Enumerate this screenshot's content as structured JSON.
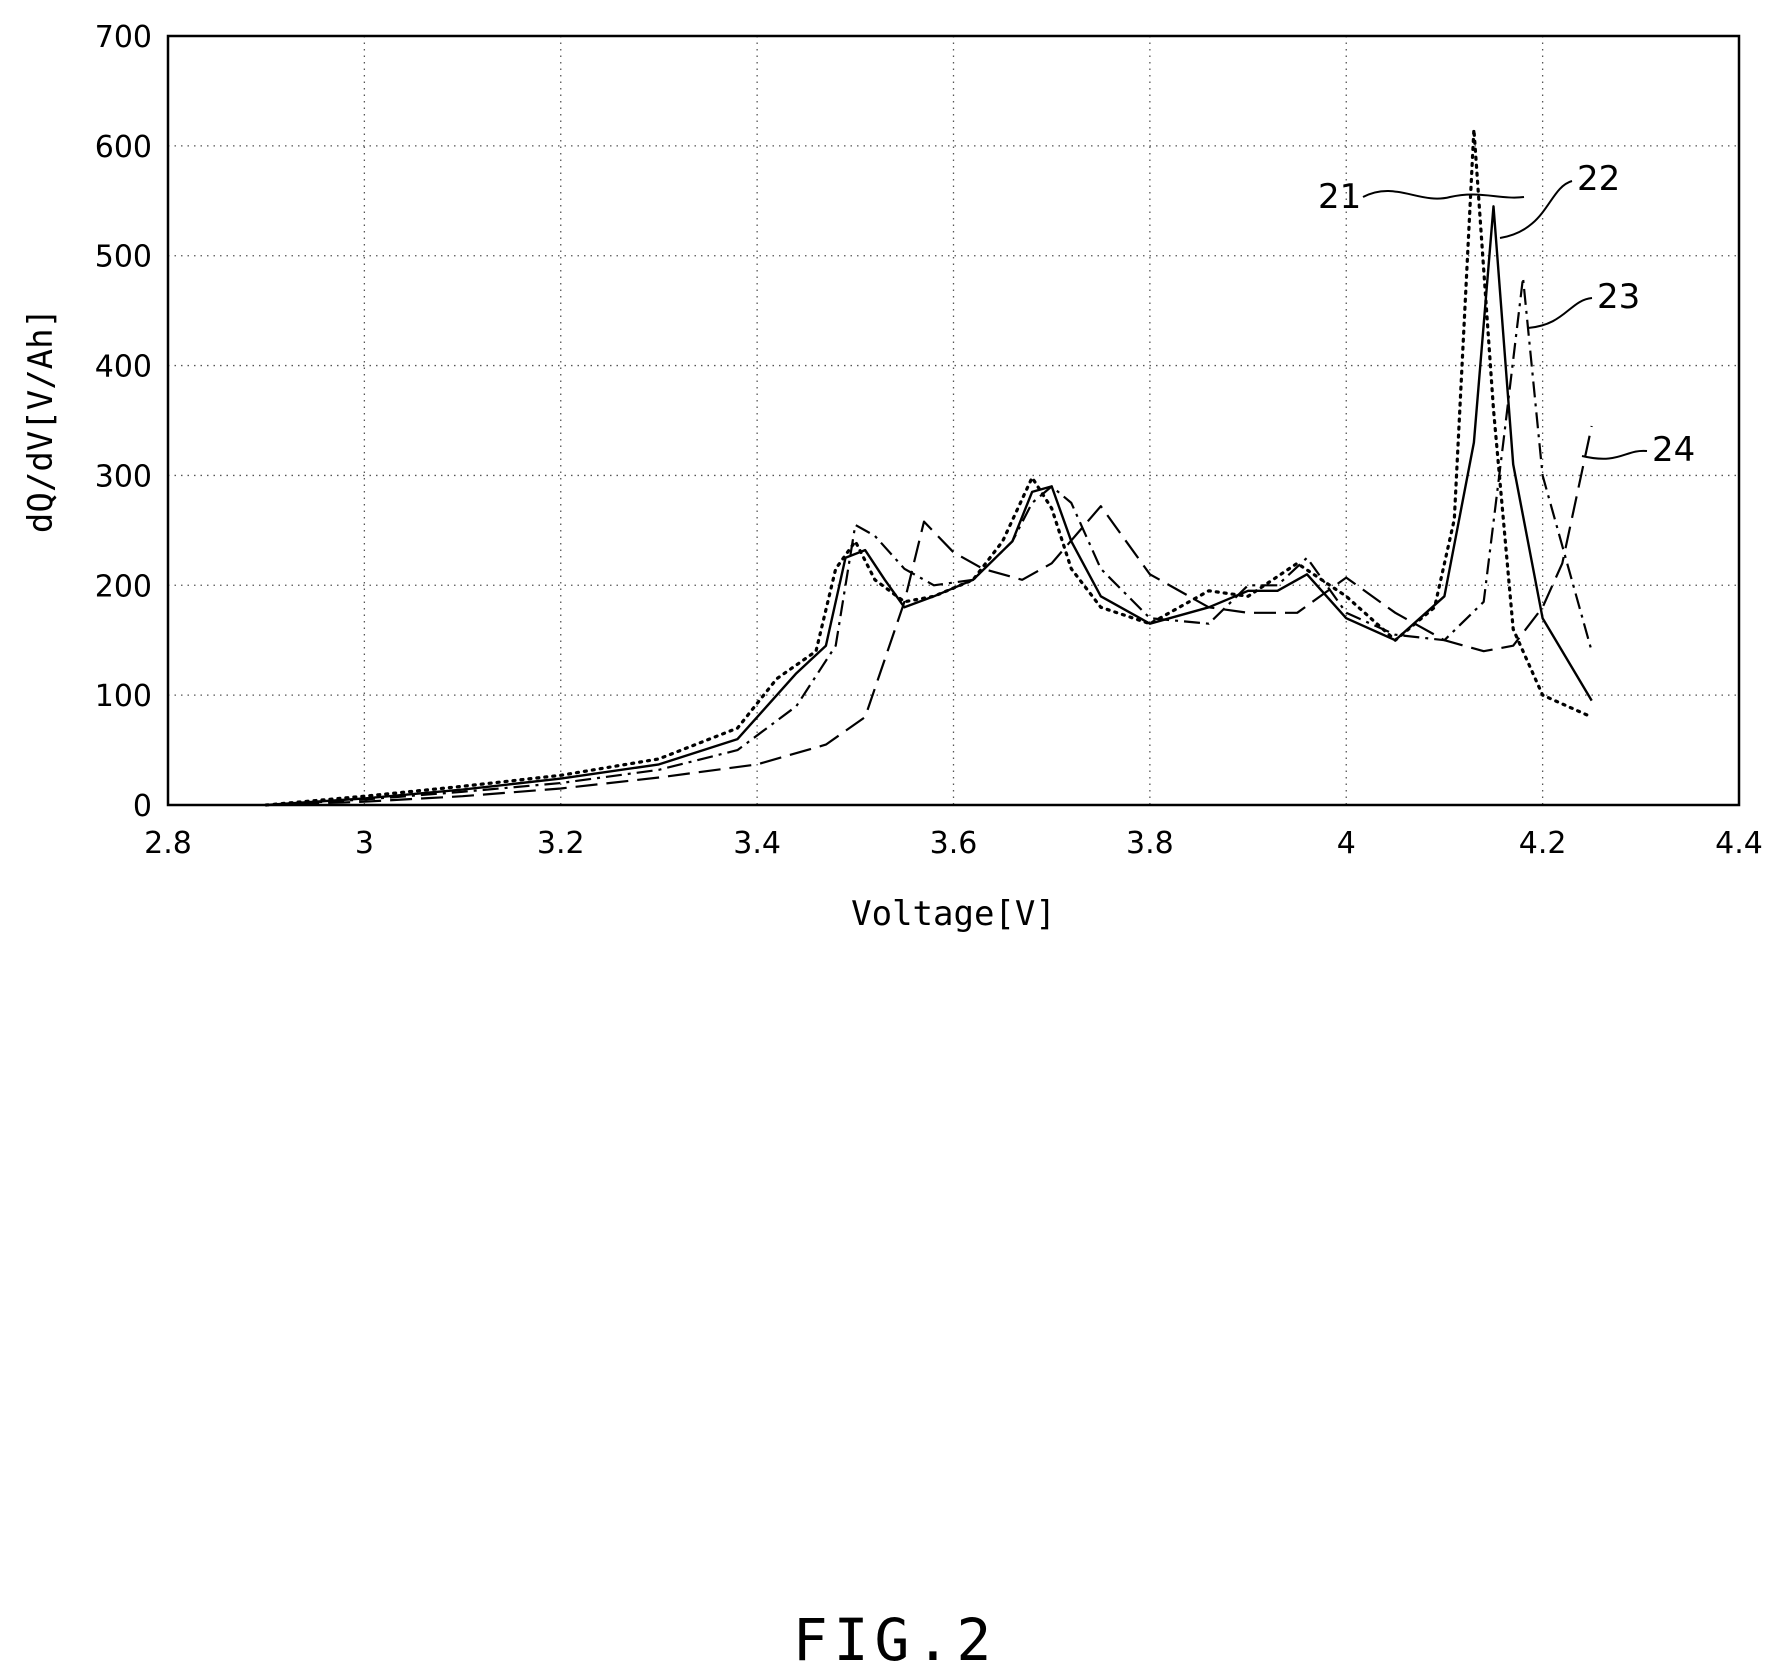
{
  "chart_data": {
    "type": "line",
    "xlabel": "Voltage[V]",
    "ylabel": "dQ/dV[V/Ah]",
    "xlim": [
      2.8,
      4.4
    ],
    "ylim": [
      0,
      700
    ],
    "xticks": [
      2.8,
      3,
      3.2,
      3.4,
      3.6,
      3.8,
      4,
      4.2,
      4.4
    ],
    "xtick_labels": [
      "2.8",
      "3",
      "3.2",
      "3.4",
      "3.6",
      "3.8",
      "4",
      "4.2",
      "4.4"
    ],
    "yticks": [
      0,
      100,
      200,
      300,
      400,
      500,
      600,
      700
    ],
    "ytick_labels": [
      "0",
      "100",
      "200",
      "300",
      "400",
      "500",
      "600",
      "700"
    ],
    "grid": true,
    "series": [
      {
        "name": "21",
        "style": "dotted",
        "x": [
          2.9,
          3.0,
          3.1,
          3.2,
          3.3,
          3.38,
          3.42,
          3.46,
          3.48,
          3.5,
          3.52,
          3.55,
          3.58,
          3.62,
          3.65,
          3.68,
          3.7,
          3.72,
          3.75,
          3.8,
          3.86,
          3.9,
          3.95,
          4.0,
          4.05,
          4.09,
          4.11,
          4.13,
          4.15,
          4.17,
          4.2,
          4.25
        ],
        "y": [
          0,
          8,
          17,
          27,
          42,
          70,
          115,
          140,
          215,
          240,
          205,
          185,
          190,
          205,
          240,
          298,
          270,
          215,
          180,
          165,
          195,
          190,
          220,
          190,
          150,
          180,
          260,
          615,
          360,
          160,
          100,
          80
        ]
      },
      {
        "name": "22",
        "style": "solid",
        "x": [
          2.9,
          3.0,
          3.1,
          3.2,
          3.3,
          3.38,
          3.44,
          3.47,
          3.49,
          3.51,
          3.53,
          3.55,
          3.58,
          3.62,
          3.66,
          3.68,
          3.7,
          3.72,
          3.75,
          3.8,
          3.86,
          3.9,
          3.93,
          3.96,
          4.0,
          4.05,
          4.1,
          4.13,
          4.15,
          4.17,
          4.2,
          4.25
        ],
        "y": [
          0,
          6,
          14,
          24,
          37,
          60,
          120,
          145,
          225,
          232,
          205,
          180,
          190,
          205,
          240,
          285,
          290,
          240,
          190,
          165,
          180,
          195,
          195,
          210,
          170,
          150,
          190,
          330,
          545,
          310,
          170,
          95
        ]
      },
      {
        "name": "23",
        "style": "dash-dot",
        "x": [
          2.9,
          3.0,
          3.1,
          3.2,
          3.3,
          3.38,
          3.44,
          3.48,
          3.5,
          3.52,
          3.55,
          3.58,
          3.62,
          3.66,
          3.68,
          3.7,
          3.72,
          3.75,
          3.8,
          3.86,
          3.9,
          3.93,
          3.96,
          4.0,
          4.05,
          4.1,
          4.14,
          4.16,
          4.18,
          4.2,
          4.25
        ],
        "y": [
          0,
          5,
          12,
          20,
          32,
          50,
          90,
          145,
          255,
          245,
          215,
          200,
          205,
          240,
          275,
          290,
          275,
          215,
          170,
          165,
          200,
          200,
          225,
          175,
          155,
          150,
          185,
          330,
          480,
          300,
          140
        ]
      },
      {
        "name": "24",
        "style": "dashed",
        "x": [
          2.9,
          3.0,
          3.1,
          3.2,
          3.3,
          3.4,
          3.47,
          3.51,
          3.55,
          3.57,
          3.6,
          3.63,
          3.67,
          3.7,
          3.75,
          3.8,
          3.86,
          3.9,
          3.95,
          4.0,
          4.05,
          4.1,
          4.14,
          4.17,
          4.2,
          4.22,
          4.25
        ],
        "y": [
          0,
          3,
          8,
          15,
          25,
          37,
          55,
          80,
          185,
          258,
          230,
          215,
          205,
          220,
          272,
          210,
          180,
          175,
          175,
          207,
          175,
          150,
          140,
          145,
          180,
          220,
          345
        ]
      }
    ]
  },
  "ref_labels": [
    {
      "text": "21",
      "series": "21"
    },
    {
      "text": "22",
      "series": "22"
    },
    {
      "text": "23",
      "series": "23"
    },
    {
      "text": "24",
      "series": "24"
    }
  ],
  "caption": "FIG.2"
}
